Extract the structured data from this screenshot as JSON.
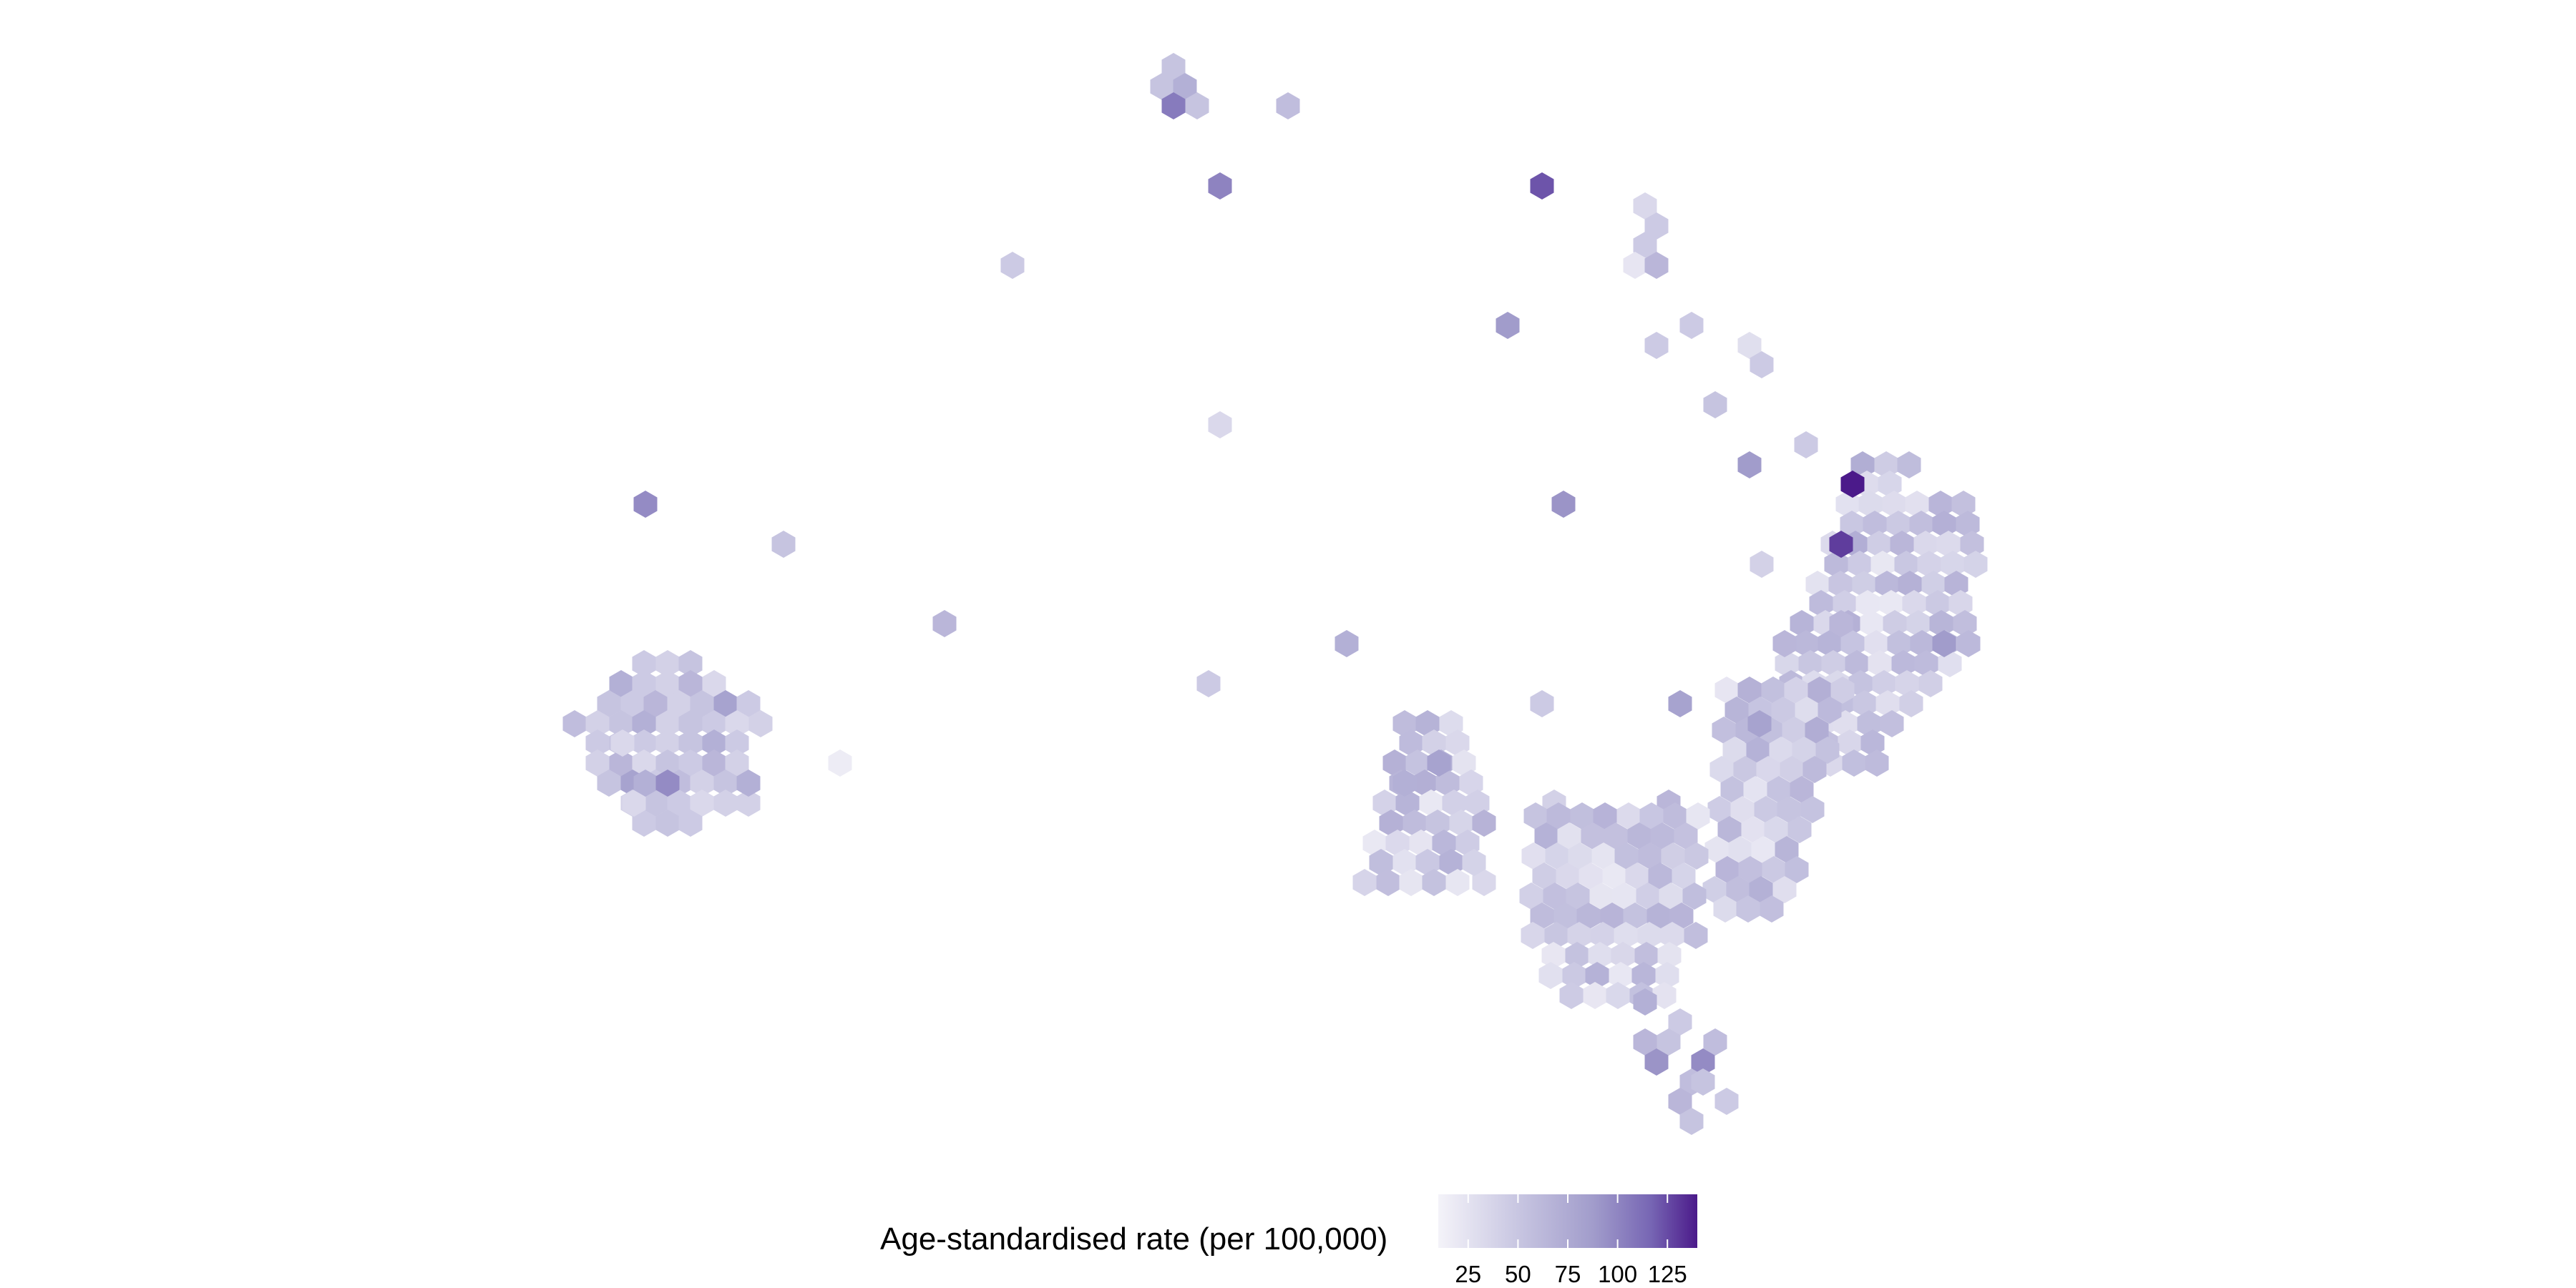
{
  "map": {
    "type": "hexbin-choropleth",
    "fill_variable": "Age-standardised rate (per 100,000)",
    "scale": {
      "min": 10,
      "max": 140,
      "colors": [
        "#f4f3f9",
        "#c9c7e2",
        "#a19ccb",
        "#7766b4",
        "#4b1a8a"
      ]
    },
    "hex_spacing": 14
  },
  "legend": {
    "title": "Age-standardised rate (per 100,000)",
    "ticks": [
      "25",
      "50",
      "75",
      "100",
      "125"
    ],
    "tick_values": [
      25,
      50,
      75,
      100,
      125
    ],
    "position": "bottom-center"
  }
}
